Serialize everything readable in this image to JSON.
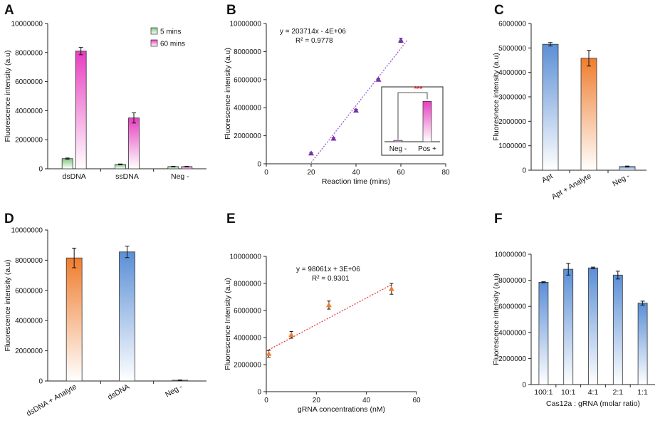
{
  "colors": {
    "green": "#7fc97f",
    "magenta": "#e83fc0",
    "blue": "#5b8fd6",
    "orange": "#ef7d2e",
    "purple": "#7b2fb0",
    "trend_purple": "#9b59d0",
    "trend_red": "#e03a3a",
    "star_red": "#e02020",
    "axis": "#222222"
  },
  "chart_data": [
    {
      "type": "bar",
      "panel": "A",
      "ylabel": "Fluorescence intensity (a.u)",
      "xlabel": "",
      "ylim": [
        0,
        10000000
      ],
      "yticks": [
        "0",
        "2000000",
        "4000000",
        "6000000",
        "8000000",
        "10000000"
      ],
      "categories": [
        "dsDNA",
        "ssDNA",
        "Neg -"
      ],
      "series": [
        {
          "name": "5 mins",
          "color": "green",
          "values": [
            700000,
            300000,
            150000
          ],
          "errors": [
            40000,
            30000,
            20000
          ]
        },
        {
          "name": "60 mins",
          "color": "magenta",
          "values": [
            8100000,
            3500000,
            150000
          ],
          "errors": [
            250000,
            350000,
            20000
          ]
        }
      ],
      "legend": "top-right"
    },
    {
      "type": "scatter",
      "panel": "B",
      "ylabel": "Fluorescence intensity (a.u)",
      "xlabel": "Reaction time (mins)",
      "xlim": [
        0,
        80
      ],
      "ylim": [
        0,
        10000000
      ],
      "xticks": [
        "0",
        "20",
        "40",
        "60",
        "80"
      ],
      "yticks": [
        "0",
        "2000000",
        "4000000",
        "6000000",
        "8000000",
        "10000000"
      ],
      "x": [
        20,
        30,
        40,
        50,
        60
      ],
      "y": [
        750000,
        1800000,
        3800000,
        6000000,
        8800000
      ],
      "errors": [
        50000,
        50000,
        80000,
        80000,
        150000
      ],
      "color": "purple",
      "trendline": {
        "slope": 203714,
        "intercept": -4000000,
        "x_range": [
          20,
          63
        ],
        "color": "trend_purple"
      },
      "equation": "y = 203714x - 4E+06",
      "r2": "R² = 0.9778",
      "inset": {
        "categories": [
          "Neg -",
          "Pos +"
        ],
        "values": [
          0.03,
          0.9
        ],
        "significance": "***"
      }
    },
    {
      "type": "bar",
      "panel": "C",
      "ylabel": "Fluoresnece intensity (a.u)",
      "xlabel": "",
      "ylim": [
        0,
        6000000
      ],
      "yticks": [
        "0",
        "1000000",
        "2000000",
        "3000000",
        "4000000",
        "5000000",
        "6000000"
      ],
      "categories": [
        "Apt",
        "Apt + Analyte",
        "Neg -"
      ],
      "values": [
        5150000,
        4580000,
        150000
      ],
      "errors": [
        70000,
        320000,
        20000
      ],
      "colors": [
        "blue",
        "orange",
        "blue"
      ]
    },
    {
      "type": "bar",
      "panel": "D",
      "ylabel": "Fluorescence intensity (a.u)",
      "xlabel": "",
      "ylim": [
        0,
        10000000
      ],
      "yticks": [
        "0",
        "2000000",
        "4000000",
        "6000000",
        "8000000",
        "10000000"
      ],
      "categories": [
        "dsDNA + Analyte",
        "dsDNA",
        "Neg -"
      ],
      "values": [
        8150000,
        8550000,
        50000
      ],
      "errors": [
        650000,
        380000,
        20000
      ],
      "colors": [
        "orange",
        "blue",
        "blue"
      ]
    },
    {
      "type": "scatter",
      "panel": "E",
      "ylabel": "Fluorescence Intensity (a.u)",
      "xlabel": "gRNA concentrations (nM)",
      "xlim": [
        0,
        60
      ],
      "ylim": [
        0,
        10000000
      ],
      "xticks": [
        "0",
        "20",
        "40",
        "60"
      ],
      "yticks": [
        "0",
        "2000000",
        "4000000",
        "6000000",
        "8000000",
        "10000000"
      ],
      "x": [
        1,
        10,
        25,
        50
      ],
      "y": [
        2800000,
        4200000,
        6400000,
        7600000
      ],
      "errors": [
        250000,
        250000,
        300000,
        400000
      ],
      "color": "orange",
      "trendline": {
        "slope": 98061,
        "intercept": 3000000,
        "x_range": [
          0,
          50
        ],
        "color": "trend_red"
      },
      "equation": "y = 98061x + 3E+06",
      "r2": "R² = 0.9301"
    },
    {
      "type": "bar",
      "panel": "F",
      "ylabel": "Fluorescence intensity (a.u)",
      "xlabel": "Cas12a : gRNA (molar ratio)",
      "ylim": [
        0,
        10000000
      ],
      "yticks": [
        "0",
        "2000000",
        "4000000",
        "6000000",
        "8000000",
        "10000000"
      ],
      "categories": [
        "100:1",
        "10:1",
        "4:1",
        "2:1",
        "1:1"
      ],
      "values": [
        7850000,
        8850000,
        8950000,
        8400000,
        6250000
      ],
      "errors": [
        40000,
        450000,
        60000,
        300000,
        150000
      ],
      "colors": [
        "blue",
        "blue",
        "blue",
        "blue",
        "blue"
      ]
    }
  ]
}
